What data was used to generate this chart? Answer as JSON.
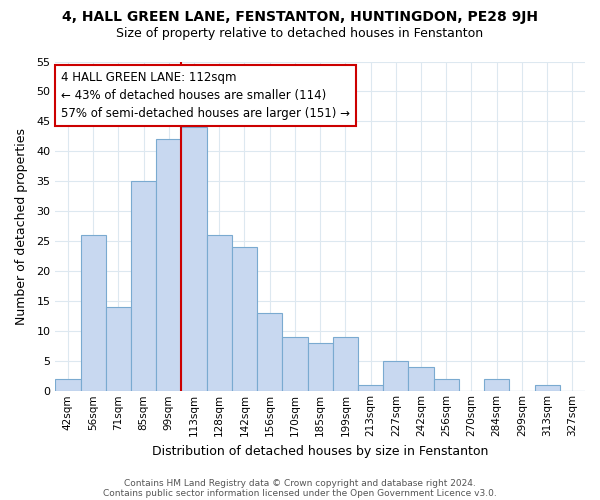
{
  "title": "4, HALL GREEN LANE, FENSTANTON, HUNTINGDON, PE28 9JH",
  "subtitle": "Size of property relative to detached houses in Fenstanton",
  "xlabel": "Distribution of detached houses by size in Fenstanton",
  "ylabel": "Number of detached properties",
  "bin_labels": [
    "42sqm",
    "56sqm",
    "71sqm",
    "85sqm",
    "99sqm",
    "113sqm",
    "128sqm",
    "142sqm",
    "156sqm",
    "170sqm",
    "185sqm",
    "199sqm",
    "213sqm",
    "227sqm",
    "242sqm",
    "256sqm",
    "270sqm",
    "284sqm",
    "299sqm",
    "313sqm",
    "327sqm"
  ],
  "bar_heights": [
    2,
    26,
    14,
    35,
    42,
    44,
    26,
    24,
    13,
    9,
    8,
    9,
    1,
    5,
    4,
    2,
    0,
    2,
    0,
    1,
    0
  ],
  "bar_color": "#c8d8f0",
  "bar_edge_color": "#7aaad0",
  "highlight_bin_index": 5,
  "vline_color": "#cc0000",
  "annotation_text": "4 HALL GREEN LANE: 112sqm\n← 43% of detached houses are smaller (114)\n57% of semi-detached houses are larger (151) →",
  "annotation_box_color": "#ffffff",
  "annotation_box_edge": "#cc0000",
  "ylim": [
    0,
    55
  ],
  "yticks": [
    0,
    5,
    10,
    15,
    20,
    25,
    30,
    35,
    40,
    45,
    50,
    55
  ],
  "footer_line1": "Contains HM Land Registry data © Crown copyright and database right 2024.",
  "footer_line2": "Contains public sector information licensed under the Open Government Licence v3.0.",
  "background_color": "#ffffff",
  "grid_color": "#dde8f0"
}
